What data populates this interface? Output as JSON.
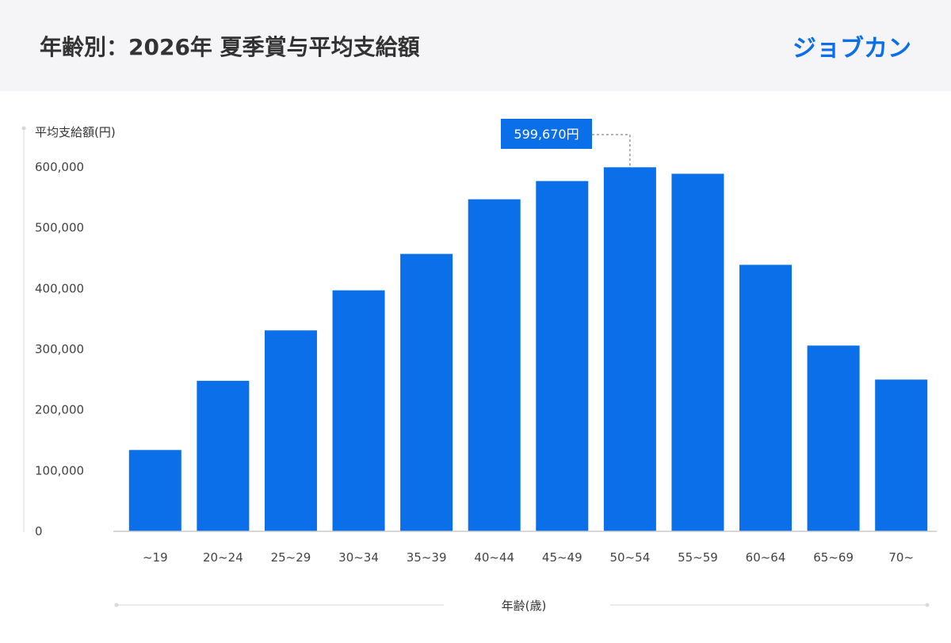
{
  "header": {
    "title": "年齢別：2026年 夏季賞与平均支給額",
    "logo": "ジョブカン"
  },
  "colors": {
    "bar": "#0a6fe8",
    "header_bg": "#f5f5f7",
    "axis": "#d9d9d9"
  },
  "chart_data": {
    "type": "bar",
    "ylabel": "平均支給額(円)",
    "xlabel": "年齢(歳)",
    "categories": [
      "~19",
      "20~24",
      "25~29",
      "30~34",
      "35~39",
      "40~44",
      "45~49",
      "50~54",
      "55~59",
      "60~64",
      "65~69",
      "70~"
    ],
    "values": [
      134000,
      248000,
      331000,
      397000,
      457000,
      547000,
      577000,
      599670,
      589000,
      439000,
      306000,
      250000
    ],
    "ylim": [
      0,
      600000
    ],
    "yticks": [
      0,
      100000,
      200000,
      300000,
      400000,
      500000,
      600000
    ],
    "ytick_labels": [
      "0",
      "100,000",
      "200,000",
      "300,000",
      "400,000",
      "500,000",
      "600,000"
    ],
    "grid": false,
    "annotation": {
      "category": "50~54",
      "text": "599,670円"
    }
  }
}
